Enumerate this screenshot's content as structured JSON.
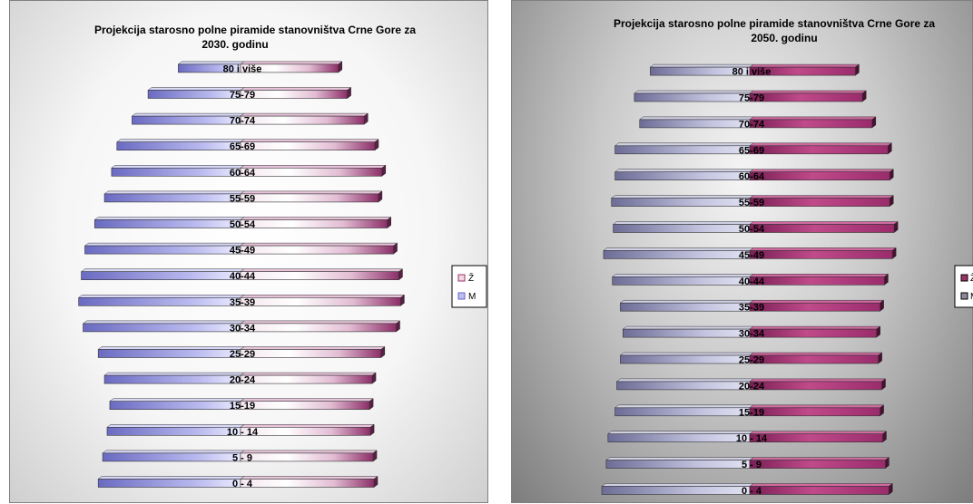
{
  "chart_data": [
    {
      "type": "bar",
      "orientation": "horizontal",
      "stacked": "population-pyramid",
      "title": "Projekcija starosno polne piramide stanovništva Crne Gore za 2030. godinu",
      "title_lines": [
        "Projekcija starosno polne piramide stanovništva Crne Gore za",
        "2030. godinu"
      ],
      "categories": [
        "0 - 4",
        "5 - 9",
        "10 - 14",
        "15-19",
        "20-24",
        "25-29",
        "30-34",
        "35-39",
        "40-44",
        "45-49",
        "50-54",
        "55-59",
        "60-64",
        "65-69",
        "70-74",
        "75-79",
        "80 i više"
      ],
      "series": [
        {
          "name": "Ž",
          "values": [
            150,
            149,
            146,
            145,
            148,
            158,
            175,
            180,
            178,
            172,
            165,
            155,
            159,
            151,
            139,
            120,
            110
          ]
        },
        {
          "name": "M",
          "values": [
            160,
            155,
            150,
            147,
            153,
            160,
            177,
            182,
            179,
            175,
            164,
            153,
            145,
            139,
            122,
            104,
            70
          ]
        }
      ],
      "legend": "right",
      "grid": false,
      "colors": {
        "Ž": "#993366",
        "M": "#9999ff"
      }
    },
    {
      "type": "bar",
      "orientation": "horizontal",
      "stacked": "population-pyramid",
      "title": "Projekcija starosno polne piramide stanovništva Crne Gore za 2050. godinu",
      "title_lines": [
        "Projekcija starosno polne piramide stanovništva Crne Gore za",
        "2050. godinu"
      ],
      "categories": [
        "0 - 4",
        "5 - 9",
        "10 - 14",
        "15-19",
        "20-24",
        "25-29",
        "30-34",
        "35-39",
        "40-44",
        "45-49",
        "50-54",
        "55-59",
        "60-64",
        "65-69",
        "70-74",
        "75-79",
        "80 i više"
      ],
      "series": [
        {
          "name": "Ž",
          "values": [
            158,
            154,
            151,
            148,
            150,
            146,
            144,
            148,
            153,
            162,
            164,
            159,
            159,
            157,
            139,
            128,
            120
          ]
        },
        {
          "name": "M",
          "values": [
            168,
            163,
            161,
            153,
            151,
            147,
            144,
            147,
            156,
            166,
            155,
            157,
            153,
            153,
            125,
            131,
            113
          ]
        }
      ],
      "legend": "right",
      "grid": false,
      "colors": {
        "Ž": "#993366",
        "M": "#9999ff"
      }
    }
  ]
}
